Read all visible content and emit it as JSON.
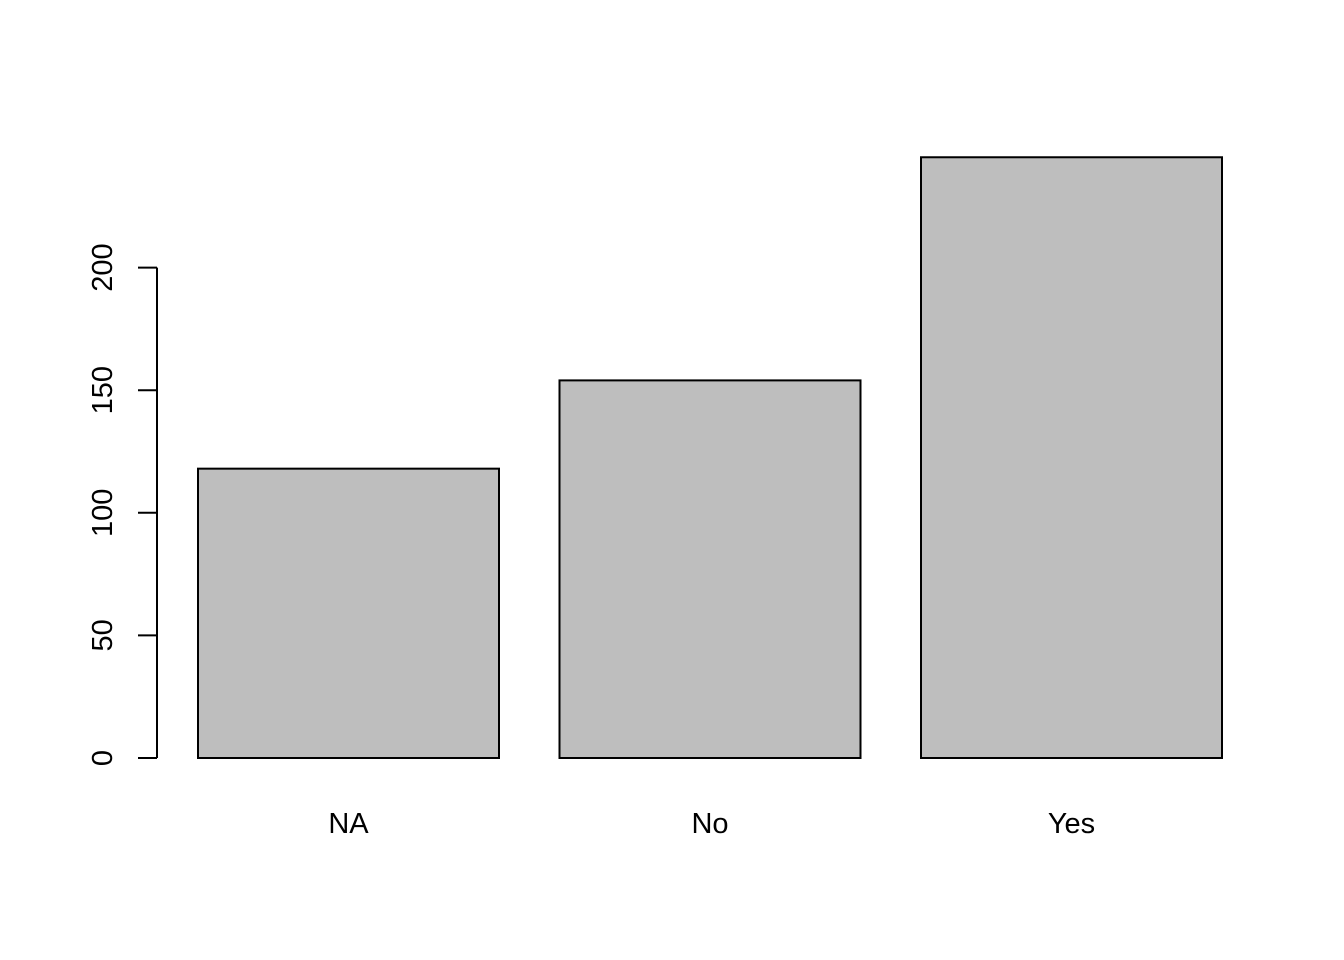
{
  "chart_data": {
    "type": "bar",
    "title": "",
    "xlabel": "",
    "ylabel": "",
    "categories": [
      "NA",
      "No",
      "Yes"
    ],
    "values": [
      118,
      154,
      245
    ],
    "ylim": [
      0,
      245
    ],
    "yticks": [
      0,
      50,
      100,
      150,
      200
    ],
    "ytick_labels": [
      "0",
      "50",
      "100",
      "150",
      "200"
    ],
    "grid": false,
    "legend": "none",
    "bar_fill": "#bebebe",
    "bar_stroke": "#000000",
    "background": "#ffffff"
  }
}
